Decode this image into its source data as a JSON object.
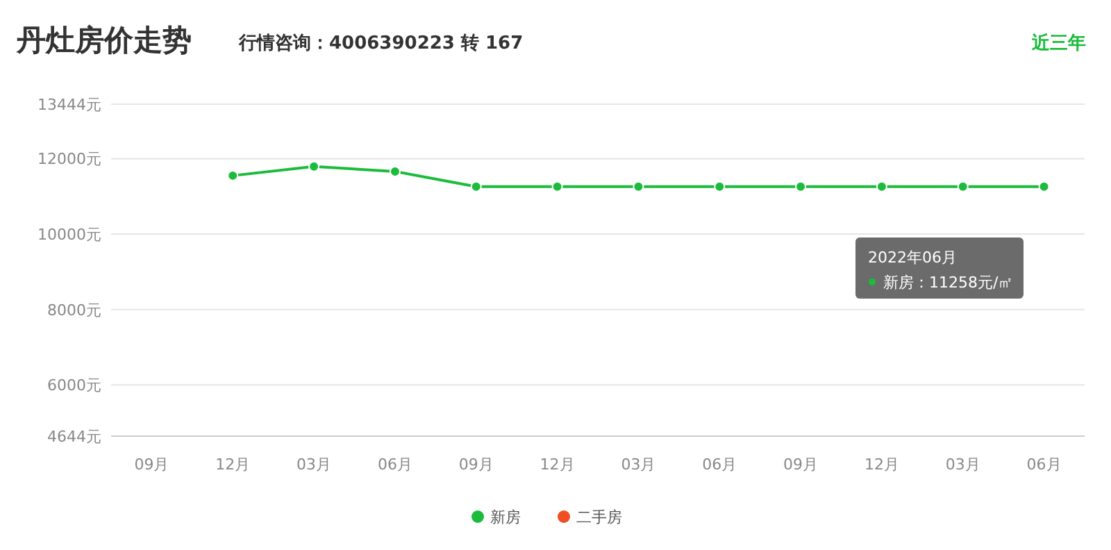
{
  "chart_data": {
    "type": "line",
    "title": "丹灶房价走势",
    "subtitle": "行情咨询：4006390223 转 167",
    "annotations": [
      "近三年",
      "2022年06月",
      "新房：11258元/㎡"
    ],
    "categories": [
      "09月",
      "12月",
      "03月",
      "06月",
      "09月",
      "12月",
      "03月",
      "06月",
      "09月",
      "12月",
      "03月",
      "06月"
    ],
    "series": [
      {
        "name": "新房",
        "color": "#1bbc3b",
        "values": [
          null,
          11550,
          11790,
          11660,
          11258,
          11258,
          11258,
          11258,
          11258,
          11258,
          11258,
          11258
        ]
      },
      {
        "name": "二手房",
        "color": "#f04e23",
        "values": [
          null,
          null,
          null,
          null,
          null,
          null,
          null,
          null,
          null,
          null,
          null,
          null
        ]
      }
    ],
    "ylim": [
      4644,
      13444
    ],
    "yticks": [
      {
        "value": 4644,
        "label": "4644元"
      },
      {
        "value": 6000,
        "label": "6000元"
      },
      {
        "value": 8000,
        "label": "8000元"
      },
      {
        "value": 10000,
        "label": "10000元"
      },
      {
        "value": 12000,
        "label": "12000元"
      },
      {
        "value": 13444,
        "label": "13444元"
      }
    ],
    "grid": "y",
    "legend": "bottom",
    "marker": "circle",
    "line_style": "solid"
  }
}
